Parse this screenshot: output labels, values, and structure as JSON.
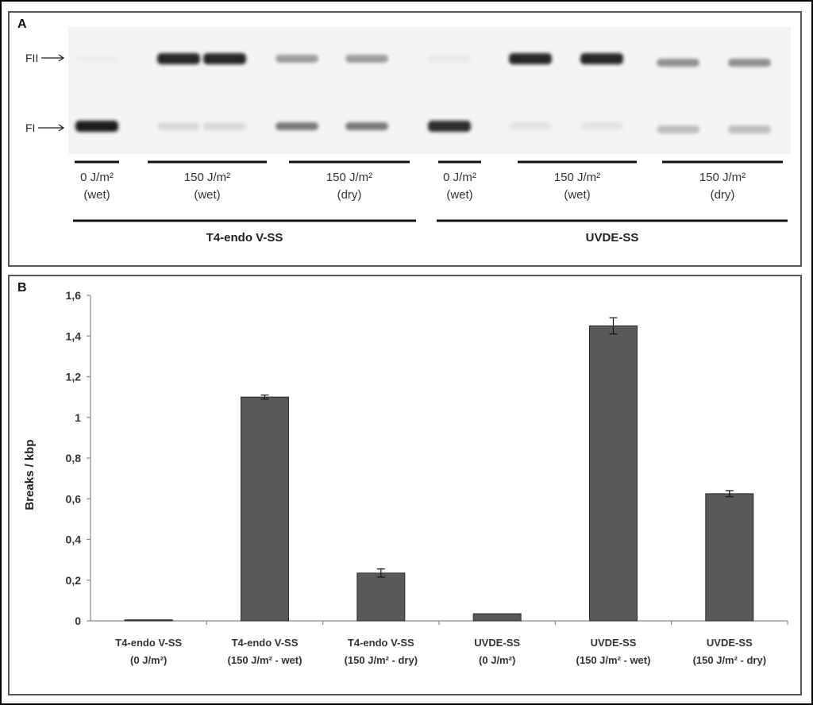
{
  "figure": {
    "panel_a": {
      "letter": "A",
      "markers": [
        "FII",
        "FI"
      ],
      "lane_groups": [
        {
          "line1": "0 J/m²",
          "line2": "(wet)"
        },
        {
          "line1": "150 J/m²",
          "line2": "(wet)"
        },
        {
          "line1": "150 J/m²",
          "line2": "(dry)"
        },
        {
          "line1": "0 J/m²",
          "line2": "(wet)"
        },
        {
          "line1": "150 J/m²",
          "line2": "(wet)"
        },
        {
          "line1": "150 J/m²",
          "line2": "(dry)"
        }
      ],
      "enzyme_groups": [
        "T4-endo V-SS",
        "UVDE-SS"
      ],
      "lanes": [
        {
          "FII": 0.03,
          "FI": 0.95
        },
        {
          "FII": 0.92,
          "FI": 0.12
        },
        {
          "FII": 0.92,
          "FI": 0.12
        },
        {
          "FII": 0.4,
          "FI": 0.55
        },
        {
          "FII": 0.4,
          "FI": 0.55
        },
        {
          "FII": 0.06,
          "FI": 0.88
        },
        {
          "FII": 0.92,
          "FI": 0.08
        },
        {
          "FII": 0.92,
          "FI": 0.08
        },
        {
          "FII": 0.45,
          "FI": 0.25
        },
        {
          "FII": 0.45,
          "FI": 0.25
        }
      ],
      "bar_color": "#1a1a1a"
    },
    "panel_b": {
      "letter": "B"
    }
  },
  "chart_data": {
    "type": "bar",
    "title": "",
    "ylabel": "Breaks / kbp",
    "xlabel": "",
    "ylim": [
      0,
      1.6
    ],
    "yticks": [
      "0",
      "0,2",
      "0,4",
      "0,6",
      "0,8",
      "1",
      "1,2",
      "1,4",
      "1,6"
    ],
    "categories": [
      {
        "line1": "T4-endo V-SS",
        "line2": "(0 J/m²)"
      },
      {
        "line1": "T4-endo V-SS",
        "line2": "(150 J/m² - wet)"
      },
      {
        "line1": "T4-endo V-SS",
        "line2": "(150 J/m² - dry)"
      },
      {
        "line1": "UVDE-SS",
        "line2": "(0 J/m²)"
      },
      {
        "line1": "UVDE-SS",
        "line2": "(150 J/m² - wet)"
      },
      {
        "line1": "UVDE-SS",
        "line2": "(150 J/m² - dry)"
      }
    ],
    "values": [
      0.005,
      1.1,
      0.235,
      0.035,
      1.45,
      0.625
    ],
    "errors": [
      0,
      0.01,
      0.02,
      0,
      0.04,
      0.015
    ],
    "bar_color": "#595959",
    "grid": false,
    "legend": "none"
  }
}
